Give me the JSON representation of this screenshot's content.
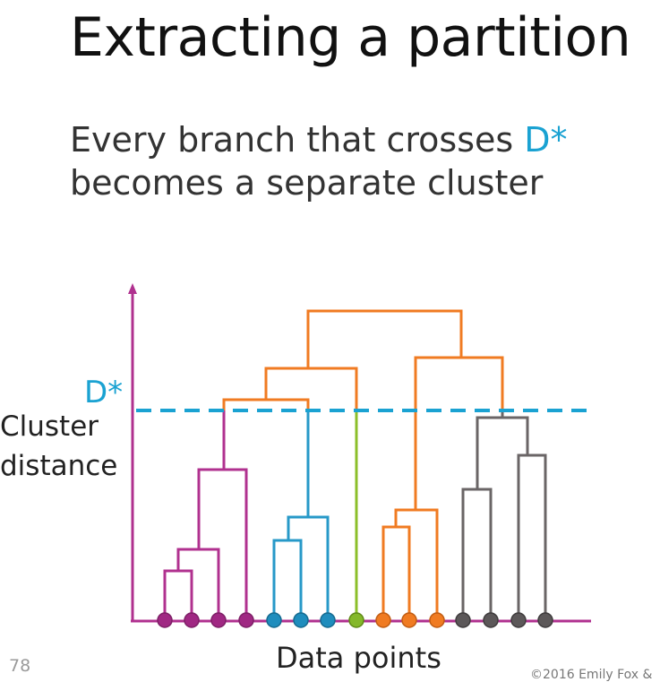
{
  "slide": {
    "title": "Extracting a partition",
    "subtitle_line1_prefix": "Every branch that crosses ",
    "subtitle_highlight": "D*",
    "subtitle_line2": "becomes a separate cluster",
    "page_number": "78",
    "copyright": "©2016 Emily Fox &"
  },
  "diagram": {
    "y_axis_label_line1": "Cluster",
    "y_axis_label_line2": "distance",
    "x_axis_label": "Data points",
    "threshold_label": "D*",
    "colors": {
      "axis": "#b0318f",
      "threshold": "#1aa2d2",
      "cluster_purple": "#b0318f",
      "cluster_blue": "#2799c8",
      "cluster_green": "#8cbf2a",
      "cluster_orange": "#f07b22",
      "cluster_gray": "#6a6566"
    },
    "clusters": [
      "purple",
      "blue",
      "green",
      "orange",
      "gray"
    ]
  }
}
